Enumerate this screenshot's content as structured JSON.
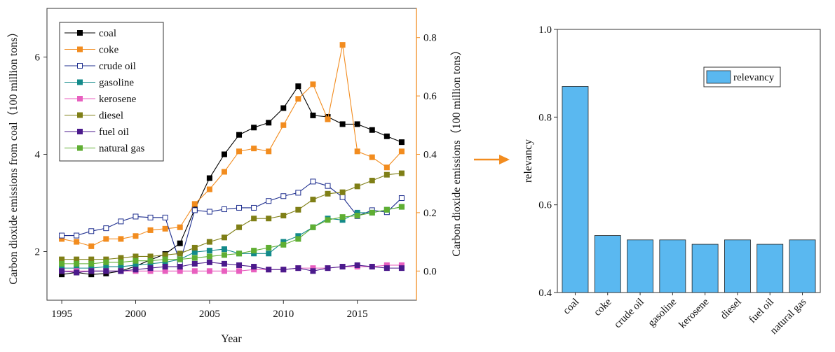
{
  "chart_data": [
    {
      "type": "line",
      "xlabel": "Year",
      "ylabel": "Carbon dioxide emissions from coal（100 million tons）",
      "y2label": "Carbon dioxide emissions（100 million tons）",
      "xlim": [
        1994,
        2019
      ],
      "ylim": [
        1.0,
        7.0
      ],
      "y2lim": [
        -0.1,
        0.9
      ],
      "x_ticks": [
        1995,
        2000,
        2005,
        2010,
        2015
      ],
      "y_ticks": [
        2,
        4,
        6
      ],
      "y2_ticks": [
        0.0,
        0.2,
        0.4,
        0.6,
        0.8
      ],
      "legend_position": "top-left",
      "x": [
        1995,
        1996,
        1997,
        1998,
        1999,
        2000,
        2001,
        2002,
        2003,
        2004,
        2005,
        2006,
        2007,
        2008,
        2009,
        2010,
        2011,
        2012,
        2013,
        2014,
        2015,
        2016,
        2017,
        2018
      ],
      "series": [
        {
          "name": "coal",
          "axis": "left",
          "color": "#000000",
          "marker": "square-filled",
          "values": [
            1.53,
            1.57,
            1.53,
            1.55,
            1.6,
            1.7,
            1.83,
            1.95,
            2.17,
            2.87,
            3.51,
            4.0,
            4.4,
            4.55,
            4.65,
            4.95,
            5.4,
            4.8,
            4.77,
            4.62,
            4.62,
            4.5,
            4.37,
            4.25
          ]
        },
        {
          "name": "coke",
          "axis": "right",
          "color": "#f28c1f",
          "marker": "square-filled",
          "values": [
            0.11,
            0.1,
            0.085,
            0.11,
            0.11,
            0.12,
            0.14,
            0.145,
            0.15,
            0.23,
            0.28,
            0.34,
            0.41,
            0.42,
            0.41,
            0.5,
            0.59,
            0.64,
            0.52,
            0.775,
            0.41,
            0.39,
            0.355,
            0.41
          ]
        },
        {
          "name": "crude oil",
          "axis": "left",
          "color": "#1f2f8f",
          "marker": "square-open",
          "values": [
            2.33,
            2.33,
            2.42,
            2.48,
            2.62,
            2.72,
            2.7,
            2.7,
            1.77,
            2.85,
            2.82,
            2.87,
            2.9,
            2.9,
            3.04,
            3.14,
            3.21,
            3.44,
            3.35,
            3.12,
            2.73,
            2.85,
            2.81,
            3.1
          ]
        },
        {
          "name": "gasoline",
          "axis": "right",
          "color": "#138a8a",
          "marker": "square-filled",
          "values": [
            0.01,
            0.01,
            0.01,
            0.015,
            0.015,
            0.02,
            0.025,
            0.03,
            0.04,
            0.065,
            0.07,
            0.075,
            0.06,
            0.06,
            0.06,
            0.1,
            0.12,
            0.15,
            0.18,
            0.175,
            0.2,
            0.2,
            0.21,
            0.22
          ]
        },
        {
          "name": "kerosene",
          "axis": "right",
          "color": "#e85fbf",
          "marker": "square-filled",
          "values": [
            0.0,
            0.0,
            0.0,
            0.0,
            0.0,
            0.0,
            0.0,
            0.0,
            0.0,
            0.0,
            0.0,
            0.0,
            0.0,
            0.005,
            0.005,
            0.005,
            0.01,
            0.01,
            0.01,
            0.015,
            0.015,
            0.015,
            0.02,
            0.02
          ]
        },
        {
          "name": "diesel",
          "axis": "right",
          "color": "#7f7f16",
          "marker": "square-filled",
          "values": [
            0.04,
            0.04,
            0.04,
            0.04,
            0.045,
            0.05,
            0.05,
            0.055,
            0.06,
            0.08,
            0.1,
            0.115,
            0.15,
            0.18,
            0.18,
            0.19,
            0.21,
            0.245,
            0.265,
            0.27,
            0.29,
            0.31,
            0.33,
            0.335
          ]
        },
        {
          "name": "fuel oil",
          "axis": "right",
          "color": "#4b1a8c",
          "marker": "square-filled",
          "values": [
            0.0,
            -0.005,
            0.0,
            0.0,
            0.0,
            0.005,
            0.01,
            0.015,
            0.015,
            0.025,
            0.03,
            0.025,
            0.02,
            0.015,
            0.005,
            0.005,
            0.01,
            0.0,
            0.01,
            0.015,
            0.02,
            0.015,
            0.01,
            0.01
          ]
        },
        {
          "name": "natural gas",
          "axis": "right",
          "color": "#5fae32",
          "marker": "square-filled",
          "values": [
            0.025,
            0.025,
            0.025,
            0.03,
            0.03,
            0.035,
            0.035,
            0.04,
            0.04,
            0.045,
            0.05,
            0.055,
            0.06,
            0.07,
            0.08,
            0.09,
            0.11,
            0.15,
            0.175,
            0.185,
            0.19,
            0.2,
            0.21,
            0.22
          ]
        }
      ]
    },
    {
      "type": "bar",
      "ylabel": "relevancy",
      "ylim": [
        0.4,
        1.0
      ],
      "y_ticks": [
        0.4,
        0.6,
        0.8,
        1.0
      ],
      "legend_position": "top-right",
      "categories": [
        "coal",
        "coke",
        "crude oil",
        "gasoline",
        "kerosene",
        "diesel",
        "fuel oil",
        "natural gas"
      ],
      "series": [
        {
          "name": "relevancy",
          "color": "#5ab8f0",
          "values": [
            0.87,
            0.53,
            0.52,
            0.52,
            0.51,
            0.52,
            0.51,
            0.52
          ]
        }
      ]
    }
  ],
  "arrow_color": "#f28c1f"
}
